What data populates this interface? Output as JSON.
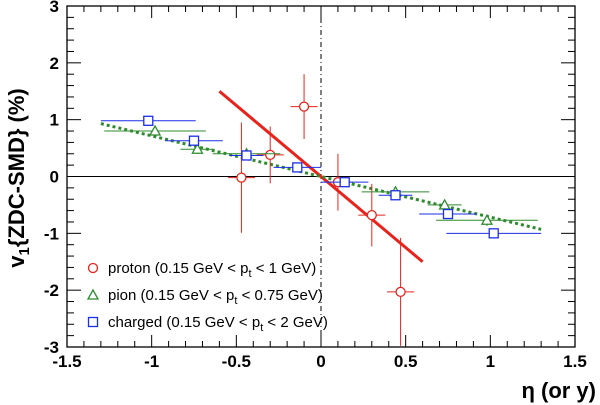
{
  "chart_data": {
    "type": "scatter",
    "title": "",
    "xlabel": "η (or y)",
    "ylabel": "v1{ZDC-SMD} (%)",
    "xlim": [
      -1.5,
      1.5
    ],
    "ylim": [
      -3,
      3
    ],
    "x_ticks": [
      -1.5,
      -1,
      -0.5,
      0,
      0.5,
      1,
      1.5
    ],
    "x_tick_labels": [
      "-1.5",
      "-1",
      "-0.5",
      "0",
      "0.5",
      "1",
      "1.5"
    ],
    "y_ticks": [
      -3,
      -2,
      -1,
      0,
      1,
      2,
      3
    ],
    "y_tick_labels": [
      "-3",
      "-2",
      "-1",
      "0",
      "1",
      "2",
      "3"
    ],
    "grid": false,
    "reference_lines": {
      "horizontal_y": 0,
      "vertical_x": 0
    },
    "legend_position": "bottom-left",
    "series": [
      {
        "name": "proton (0.15 GeV < pt < 1 GeV)",
        "marker": "circle",
        "color": "#e8231c",
        "points": [
          {
            "x": -0.47,
            "y": -0.02,
            "xerr": 0.08,
            "yerr": 0.97
          },
          {
            "x": -0.3,
            "y": 0.38,
            "xerr": 0.08,
            "yerr": 0.5
          },
          {
            "x": -0.1,
            "y": 1.23,
            "xerr": 0.08,
            "yerr": 0.57
          },
          {
            "x": 0.1,
            "y": -0.1,
            "xerr": 0.08,
            "yerr": 0.5
          },
          {
            "x": 0.3,
            "y": -0.68,
            "xerr": 0.08,
            "yerr": 0.55
          },
          {
            "x": 0.47,
            "y": -2.03,
            "xerr": 0.08,
            "yerr": 0.95
          }
        ],
        "fit": {
          "x": [
            -0.6,
            0.6
          ],
          "y": [
            1.5,
            -1.5
          ],
          "color": "#e8231c",
          "style": "solid"
        }
      },
      {
        "name": "pion (0.15 GeV < pt < 0.75 GeV)",
        "marker": "triangle",
        "color": "#2e8b2e",
        "points": [
          {
            "x": -0.98,
            "y": 0.8,
            "xerr": 0.3,
            "yerr": 0.1
          },
          {
            "x": -0.73,
            "y": 0.48,
            "xerr": 0.1,
            "yerr": 0.08
          },
          {
            "x": -0.44,
            "y": 0.4,
            "xerr": 0.2,
            "yerr": 0.08
          },
          {
            "x": 0.44,
            "y": -0.27,
            "xerr": 0.2,
            "yerr": 0.08
          },
          {
            "x": 0.73,
            "y": -0.5,
            "xerr": 0.1,
            "yerr": 0.08
          },
          {
            "x": 0.98,
            "y": -0.77,
            "xerr": 0.3,
            "yerr": 0.1
          }
        ],
        "fit": {
          "x": [
            -1.3,
            1.3
          ],
          "y": [
            0.93,
            -0.93
          ],
          "color": "#2e8b2e",
          "style": "dotted"
        }
      },
      {
        "name": "charged (0.15 GeV < pt < 2 GeV)",
        "marker": "square",
        "color": "#1c2ee8",
        "points": [
          {
            "x": -1.02,
            "y": 0.98,
            "xerr": 0.28,
            "yerr": 0.05
          },
          {
            "x": -0.75,
            "y": 0.63,
            "xerr": 0.17,
            "yerr": 0.05
          },
          {
            "x": -0.44,
            "y": 0.37,
            "xerr": 0.1,
            "yerr": 0.05
          },
          {
            "x": -0.14,
            "y": 0.16,
            "xerr": 0.14,
            "yerr": 0.05
          },
          {
            "x": 0.14,
            "y": -0.1,
            "xerr": 0.14,
            "yerr": 0.05
          },
          {
            "x": 0.44,
            "y": -0.33,
            "xerr": 0.1,
            "yerr": 0.05
          },
          {
            "x": 0.75,
            "y": -0.66,
            "xerr": 0.17,
            "yerr": 0.05
          },
          {
            "x": 1.02,
            "y": -1.0,
            "xerr": 0.28,
            "yerr": 0.05
          }
        ]
      }
    ]
  },
  "labels": {
    "y_axis_main": "v",
    "y_axis_sub": "1",
    "y_axis_rest": "{ZDC-SMD} (%)",
    "x_axis_title": "η (or y)",
    "legend": [
      {
        "prefix": "proton (0.15 GeV < p",
        "sub": "t",
        "suffix": " < 1 GeV)"
      },
      {
        "prefix": "pion (0.15 GeV < p",
        "sub": "t",
        "suffix": " < 0.75 GeV)"
      },
      {
        "prefix": "charged (0.15 GeV < p",
        "sub": "t",
        "suffix": " < 2 GeV)"
      }
    ]
  }
}
